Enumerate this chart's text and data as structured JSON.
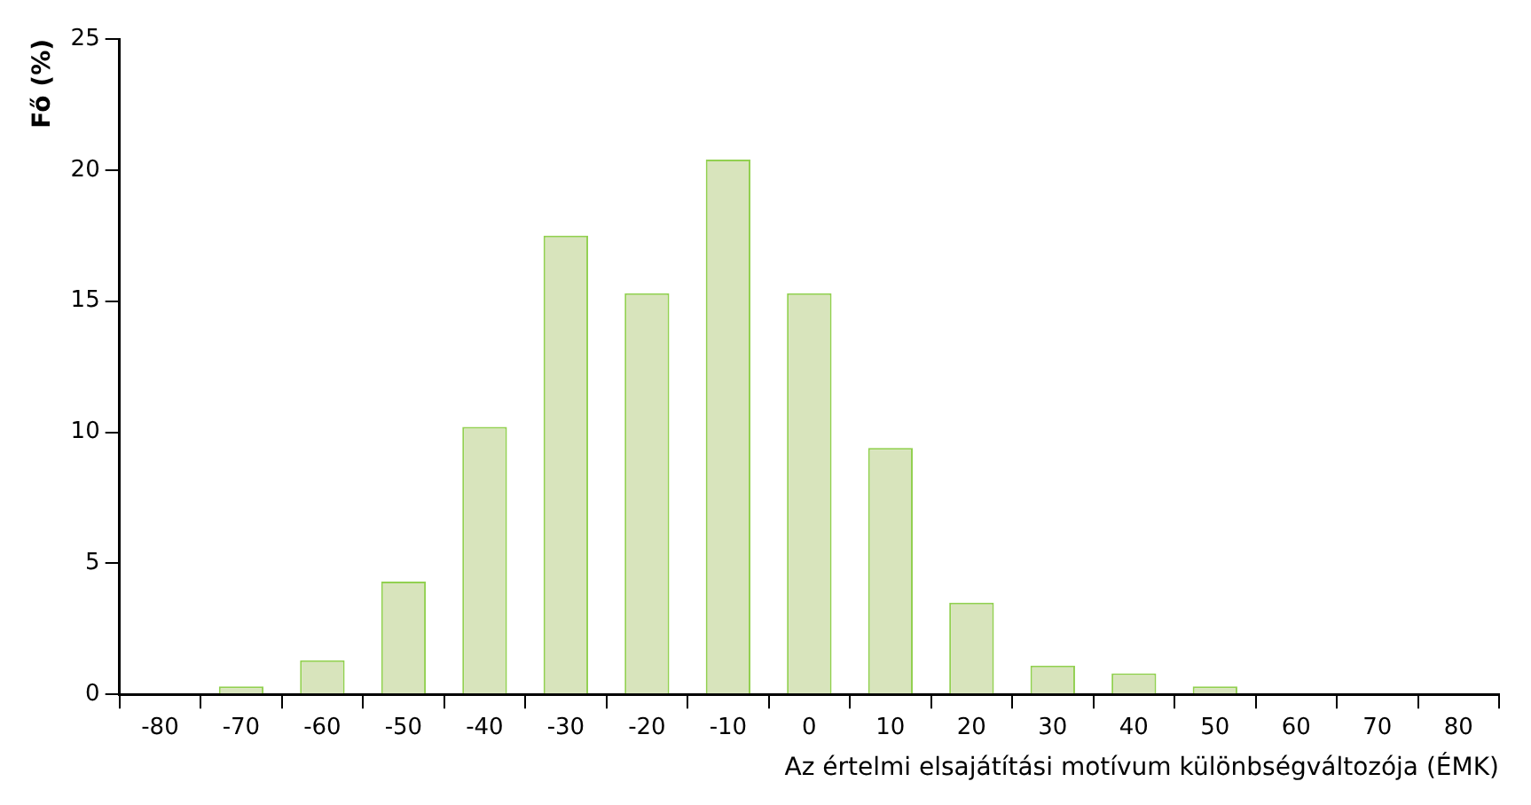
{
  "chart_data": {
    "type": "bar",
    "xlabel": "Az értelmi elsajátítási motívum különbségváltozója (ÉMK)",
    "ylabel": "Fő (%)",
    "categories": [
      "-80",
      "-70",
      "-60",
      "-50",
      "-40",
      "-30",
      "-20",
      "-10",
      "0",
      "10",
      "20",
      "30",
      "40",
      "50",
      "60",
      "70",
      "80"
    ],
    "values": [
      0,
      0.3,
      1.3,
      4.3,
      10.2,
      17.5,
      15.3,
      20.4,
      15.3,
      9.4,
      3.5,
      1.1,
      0.8,
      0.3,
      0,
      0,
      0
    ],
    "color": "#d8e4bc",
    "ylim": [
      0,
      25
    ],
    "yticks": [
      0,
      5,
      10,
      15,
      20,
      25
    ],
    "grid": false,
    "legend": false
  }
}
